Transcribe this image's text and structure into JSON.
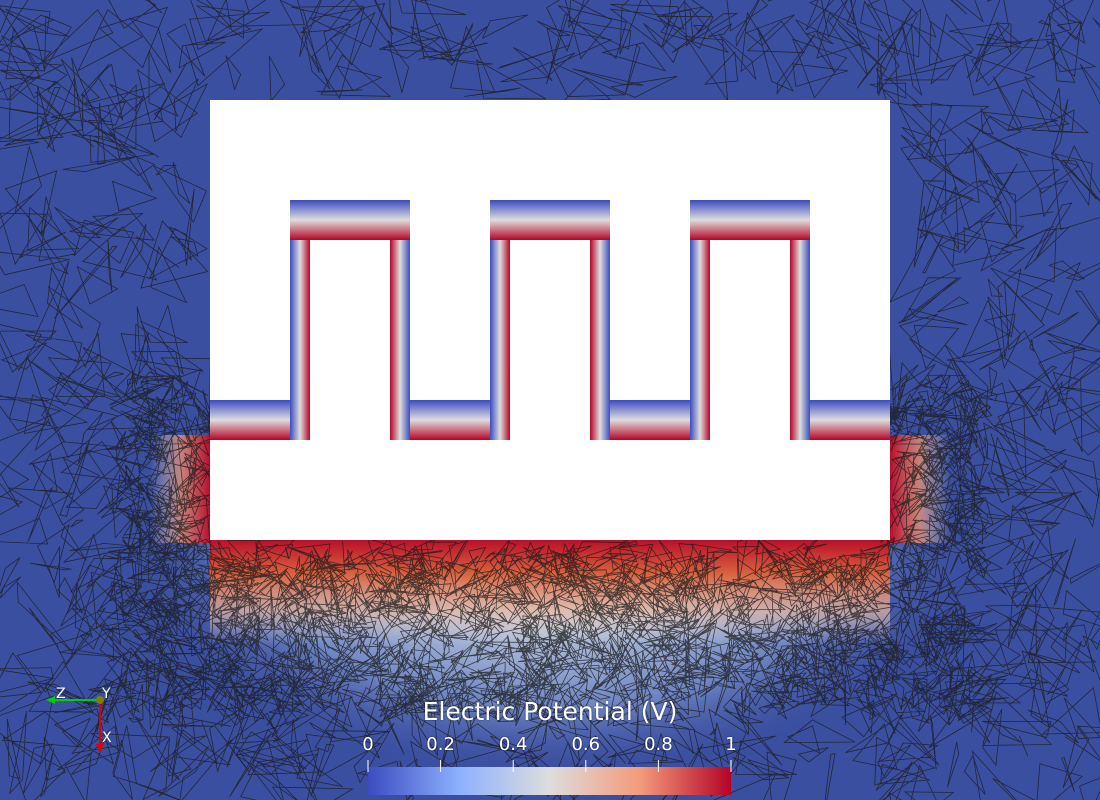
{
  "colorbar": {
    "title": "Electric Potential (V)",
    "range": [
      0,
      1
    ],
    "ticks": [
      {
        "value": 0,
        "label": "0"
      },
      {
        "value": 0.2,
        "label": "0.2"
      },
      {
        "value": 0.4,
        "label": "0.4"
      },
      {
        "value": 0.6,
        "label": "0.6"
      },
      {
        "value": 0.8,
        "label": "0.8"
      },
      {
        "value": 1,
        "label": "1"
      }
    ],
    "colormap": [
      "#3b4cc0",
      "#8db0fe",
      "#dddddd",
      "#f49a7b",
      "#b40426"
    ]
  },
  "orientation_axes": {
    "z_label": "Z",
    "y_label": "Y",
    "x_label": "X",
    "colors": {
      "x": "#e00000",
      "y": "#e0e000",
      "z": "#00d000"
    }
  },
  "colors": {
    "background_field": "#3b4fa0",
    "conductor": "#ffffff",
    "mesh_lines": "#1a1a1a"
  }
}
